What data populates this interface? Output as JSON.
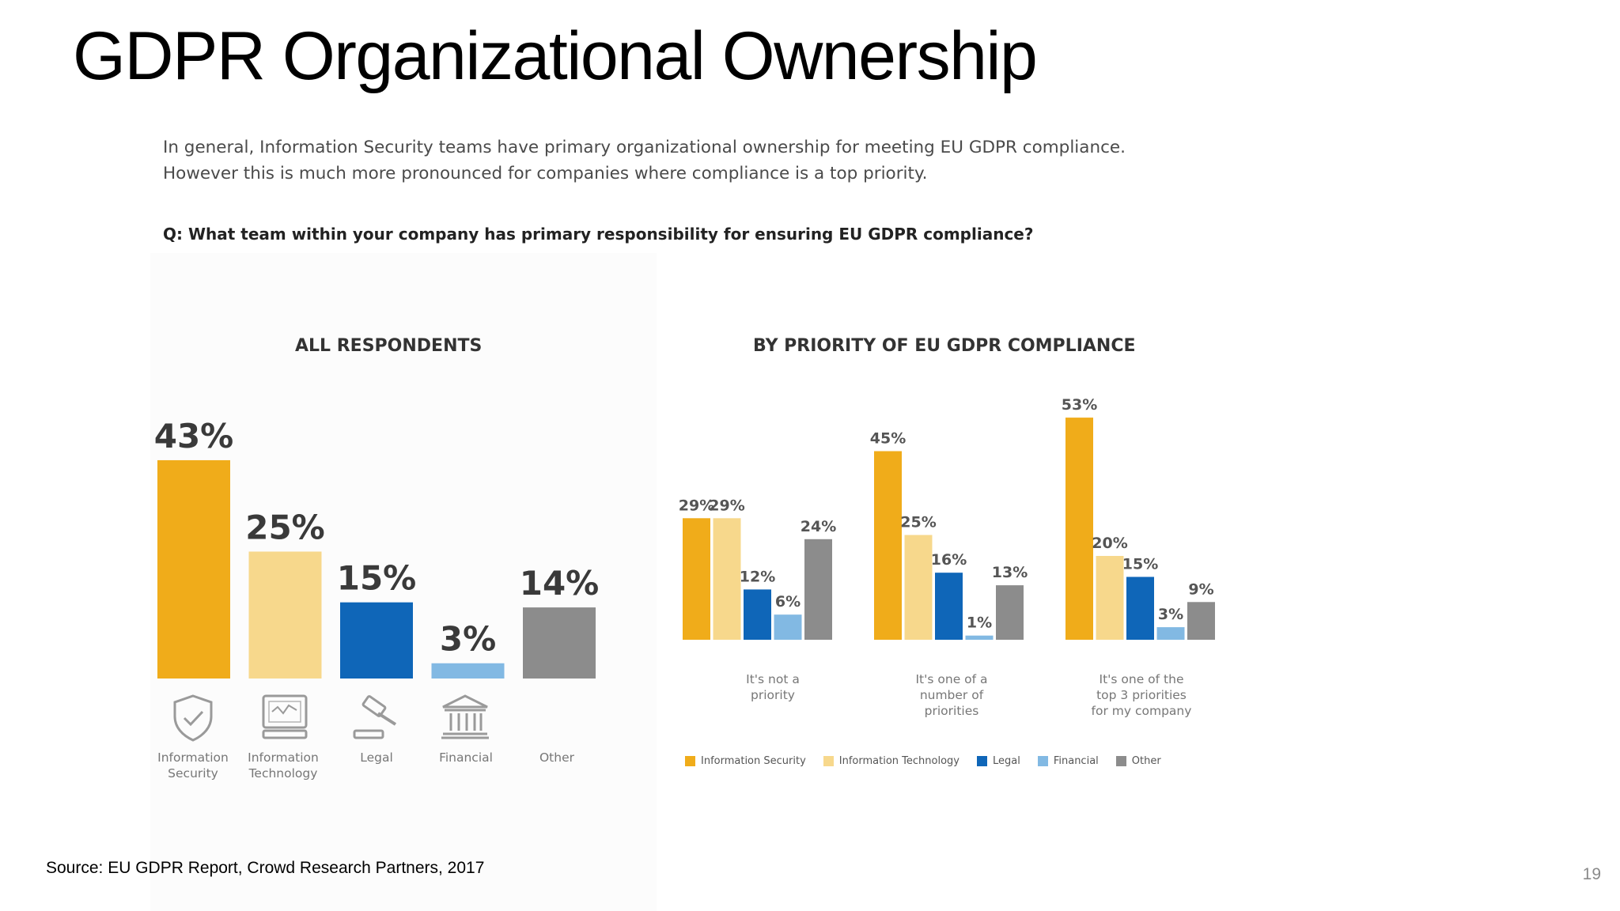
{
  "slide": {
    "title": "GDPR Organizational Ownership",
    "intro_line1": "In general, Information Security teams have primary organizational ownership for meeting EU GDPR compliance.",
    "intro_line2": "However this is much more pronounced for companies where compliance is a top priority.",
    "question": "Q: What team within your company has primary responsibility for ensuring EU GDPR compliance?",
    "source": "Source: EU GDPR Report, Crowd Research Partners, 2017",
    "page_number": "19"
  },
  "icons": [
    {
      "name": "shield-check-icon",
      "label_line1": "Information",
      "label_line2": "Security"
    },
    {
      "name": "monitor-icon",
      "label_line1": "Information",
      "label_line2": "Technology"
    },
    {
      "name": "gavel-icon",
      "label_line1": "Legal",
      "label_line2": ""
    },
    {
      "name": "bank-building-icon",
      "label_line1": "Financial",
      "label_line2": ""
    },
    {
      "name": "",
      "label_line1": "Other",
      "label_line2": ""
    }
  ],
  "chart_data": [
    {
      "type": "bar",
      "title": "ALL RESPONDENTS",
      "categories": [
        "Information Security",
        "Information Technology",
        "Legal",
        "Financial",
        "Other"
      ],
      "values": [
        43,
        25,
        15,
        3,
        14
      ],
      "data_labels": [
        "43%",
        "25%",
        "15%",
        "3%",
        "14%"
      ],
      "colors": [
        "#f0ac1a",
        "#f7d88c",
        "#0f66b8",
        "#82b9e3",
        "#8c8c8c"
      ],
      "ylim": [
        0,
        45
      ],
      "grid": false
    },
    {
      "type": "bar",
      "title": "BY PRIORITY OF EU GDPR COMPLIANCE",
      "groups": [
        {
          "line1": "It's not a",
          "line2": "priority",
          "line3": ""
        },
        {
          "line1": "It's one of a",
          "line2": "number of",
          "line3": "priorities"
        },
        {
          "line1": "It's one of the",
          "line2": "top 3 priorities",
          "line3": "for my company"
        }
      ],
      "series": [
        {
          "name": "Information Security",
          "color": "#f0ac1a",
          "values": [
            29,
            45,
            53
          ]
        },
        {
          "name": "Information Technology",
          "color": "#f7d88c",
          "values": [
            29,
            25,
            20
          ]
        },
        {
          "name": "Legal",
          "color": "#0f66b8",
          "values": [
            12,
            16,
            15
          ]
        },
        {
          "name": "Financial",
          "color": "#82b9e3",
          "values": [
            6,
            1,
            3
          ]
        },
        {
          "name": "Other",
          "color": "#8c8c8c",
          "values": [
            24,
            13,
            9
          ]
        }
      ],
      "ylim": [
        0,
        55
      ],
      "grid": false,
      "legend_position": "bottom"
    }
  ]
}
